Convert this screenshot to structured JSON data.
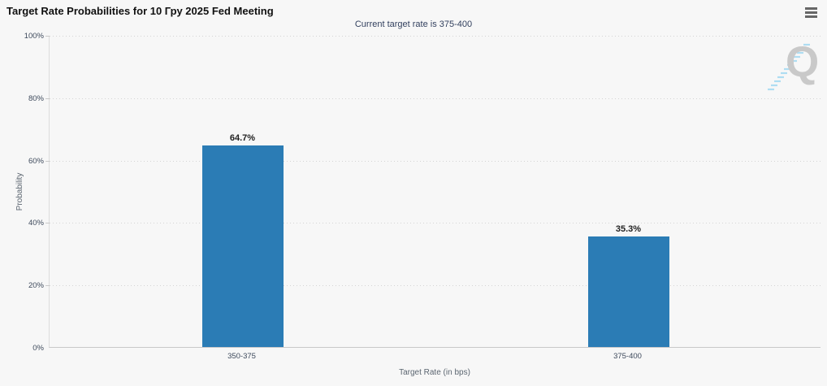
{
  "header": {
    "title": "Target Rate Probabilities for 10 Гру 2025 Fed Meeting",
    "menu_icon": "hamburger-icon"
  },
  "watermark": {
    "letter": "Q"
  },
  "chart_data": {
    "type": "bar",
    "title": "Target Rate Probabilities for 10 Гру 2025 Fed Meeting",
    "subtitle": "Current target rate is 375-400",
    "categories": [
      "350-375",
      "375-400"
    ],
    "values": [
      64.7,
      35.3
    ],
    "value_labels": [
      "64.7%",
      "35.3%"
    ],
    "xlabel": "Target Rate (in bps)",
    "ylabel": "Probability",
    "ylim": [
      0,
      100
    ],
    "yticks": [
      "0%",
      "20%",
      "40%",
      "60%",
      "80%",
      "100%"
    ],
    "grid": "horizontal-dotted",
    "legend": "none",
    "bar_color": "#2b7cb5",
    "background_color": "#f7f7f7",
    "subtitle_color": "#33415f"
  }
}
